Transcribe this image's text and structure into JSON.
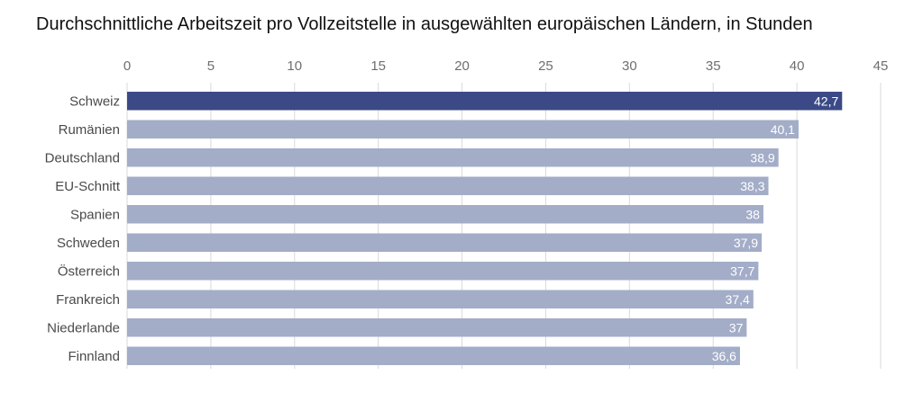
{
  "title": "Durchschnittliche Arbeitszeit pro Vollzeitstelle in ausgewählten europäischen Ländern, in Stunden",
  "colors": {
    "highlight": "#3b4a86",
    "bar": "#a3adc8",
    "grid": "#d9d9d9",
    "axis_text": "#6e6e6e"
  },
  "chart_data": {
    "type": "bar",
    "orientation": "horizontal",
    "title": "Durchschnittliche Arbeitszeit pro Vollzeitstelle in ausgewählten europäischen Ländern, in Stunden",
    "categories": [
      "Schweiz",
      "Rumänien",
      "Deutschland",
      "EU-Schnitt",
      "Spanien",
      "Schweden",
      "Österreich",
      "Frankreich",
      "Niederlande",
      "Finnland"
    ],
    "values": [
      42.7,
      40.1,
      38.9,
      38.3,
      38,
      37.9,
      37.7,
      37.4,
      37,
      36.6
    ],
    "value_labels": [
      "42,7",
      "40,1",
      "38,9",
      "38,3",
      "38",
      "37,9",
      "37,7",
      "37,4",
      "37",
      "36,6"
    ],
    "highlight": "Schweiz",
    "xlim": [
      0,
      45
    ],
    "xticks": [
      0,
      5,
      10,
      15,
      20,
      25,
      30,
      35,
      40,
      45
    ],
    "xtick_labels": [
      "0",
      "5",
      "10",
      "15",
      "20",
      "25",
      "30",
      "35",
      "40",
      "45"
    ],
    "x_axis_position": "top",
    "grid": true
  }
}
